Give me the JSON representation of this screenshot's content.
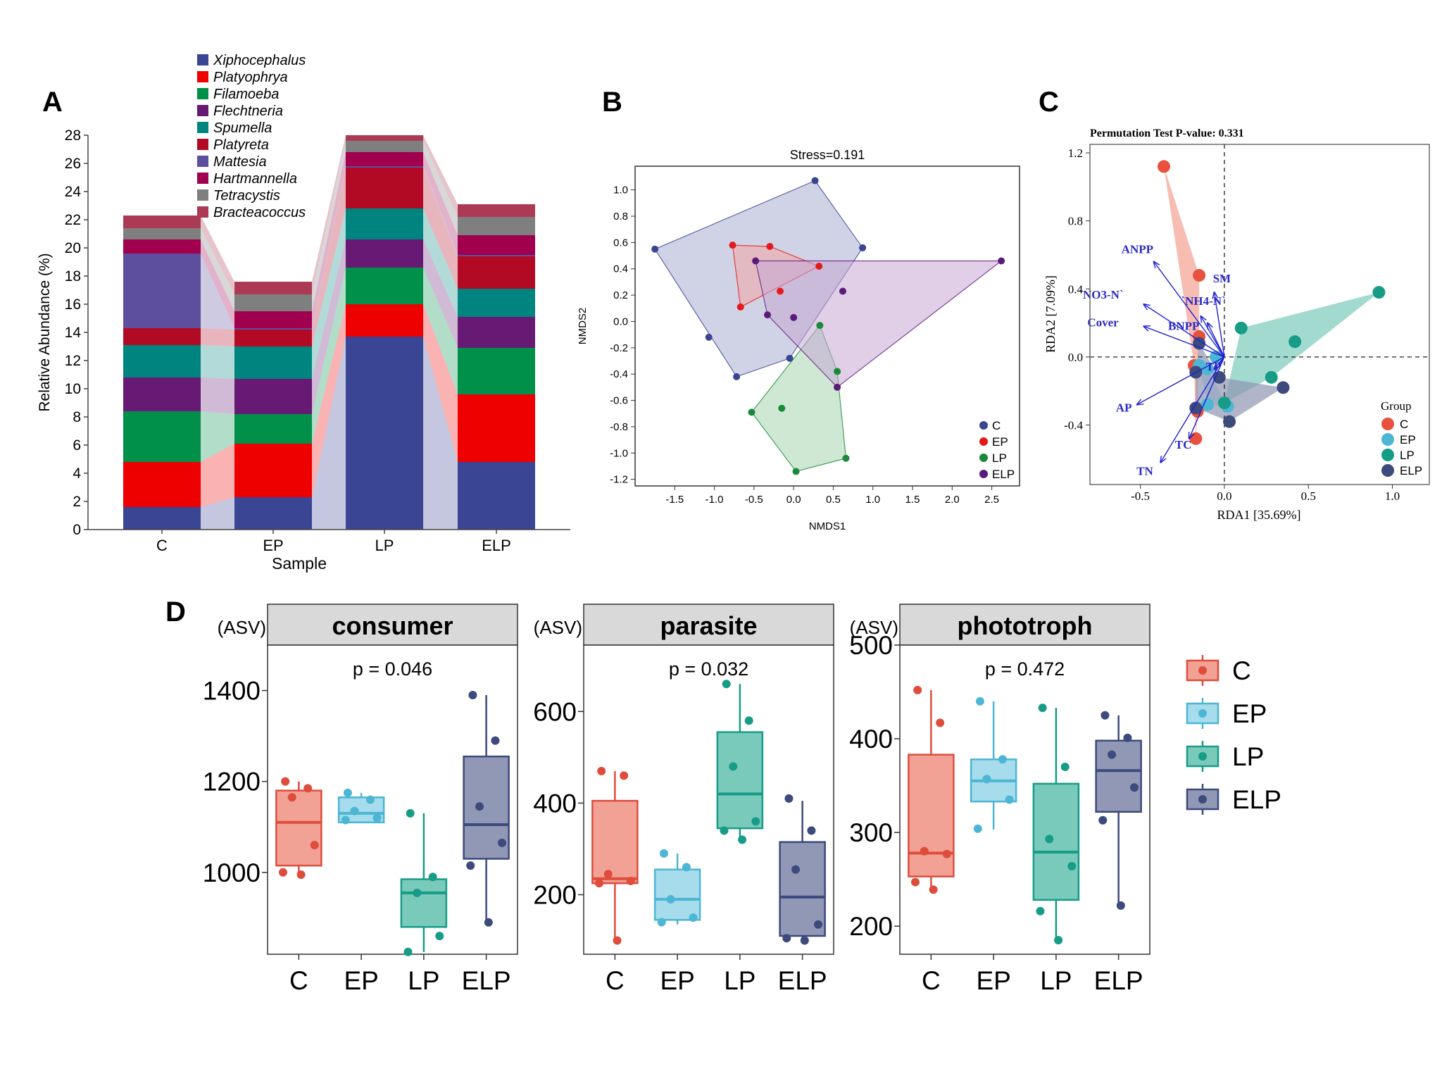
{
  "chart_data": [
    {
      "panel": "A",
      "type": "bar",
      "subtype": "stacked-alluvial",
      "xlabel": "Sample",
      "ylabel": "Relative Abundance (%)",
      "ylim": [
        0,
        28
      ],
      "yticks": [
        0,
        2,
        4,
        6,
        8,
        10,
        12,
        14,
        16,
        18,
        20,
        22,
        24,
        26,
        28
      ],
      "categories": [
        "C",
        "EP",
        "LP",
        "ELP"
      ],
      "series": [
        {
          "name": "Xiphocephalus",
          "color": "#3A4594",
          "values": [
            1.6,
            2.3,
            13.7,
            4.8
          ]
        },
        {
          "name": "Platyophrya",
          "color": "#EE0000",
          "values": [
            3.2,
            3.8,
            2.3,
            4.8
          ]
        },
        {
          "name": "Filamoeba",
          "color": "#00904A",
          "values": [
            3.6,
            2.1,
            2.6,
            3.3
          ]
        },
        {
          "name": "Flechtneria",
          "color": "#671A73",
          "values": [
            2.4,
            2.5,
            2.0,
            2.2
          ]
        },
        {
          "name": "Spumella",
          "color": "#00847F",
          "values": [
            2.3,
            2.3,
            2.2,
            2.0
          ]
        },
        {
          "name": "Platyreta",
          "color": "#B20A24",
          "values": [
            1.2,
            1.2,
            2.9,
            2.3
          ]
        },
        {
          "name": "Mattesia",
          "color": "#5E4E9E",
          "values": [
            5.3,
            0.1,
            0.1,
            0.1
          ]
        },
        {
          "name": "Hartmannella",
          "color": "#A0004E",
          "values": [
            1.0,
            1.2,
            1.0,
            1.4
          ]
        },
        {
          "name": "Tetracystis",
          "color": "#7F7F7F",
          "values": [
            0.8,
            1.2,
            0.8,
            1.3
          ]
        },
        {
          "name": "Bracteacoccus",
          "color": "#AD3A55",
          "values": [
            0.9,
            0.9,
            0.4,
            0.9
          ]
        }
      ]
    },
    {
      "panel": "B",
      "type": "scatter",
      "title": "Stress=0.191",
      "xlabel": "NMDS1",
      "ylabel": "NMDS2",
      "xlim": [
        -2.0,
        2.85
      ],
      "ylim": [
        -1.25,
        1.18
      ],
      "xticks": [
        -1.5,
        -1.0,
        -0.5,
        0.0,
        0.5,
        1.0,
        1.5,
        2.0,
        2.5
      ],
      "yticks": [
        -1.2,
        -1.0,
        -0.8,
        -0.6,
        -0.4,
        -0.2,
        0.0,
        0.2,
        0.4,
        0.6,
        0.8,
        1.0
      ],
      "groups": [
        {
          "name": "C",
          "color": "#3B4491",
          "fill": "#A9AECF",
          "points": [
            [
              -1.75,
              0.55
            ],
            [
              0.27,
              1.07
            ],
            [
              0.87,
              0.56
            ],
            [
              -0.72,
              -0.42
            ],
            [
              -1.07,
              -0.12
            ],
            [
              -0.05,
              -0.28
            ]
          ],
          "hull": [
            [
              -1.75,
              0.55
            ],
            [
              0.27,
              1.07
            ],
            [
              0.87,
              0.56
            ],
            [
              -0.05,
              -0.28
            ],
            [
              -0.72,
              -0.42
            ]
          ]
        },
        {
          "name": "EP",
          "color": "#E31A1C",
          "fill": "#F2A6A6",
          "points": [
            [
              -0.77,
              0.58
            ],
            [
              -0.3,
              0.57
            ],
            [
              0.32,
              0.42
            ],
            [
              -0.67,
              0.11
            ],
            [
              -0.17,
              0.23
            ]
          ],
          "hull": [
            [
              -0.77,
              0.58
            ],
            [
              -0.3,
              0.57
            ],
            [
              0.32,
              0.42
            ],
            [
              -0.67,
              0.11
            ]
          ]
        },
        {
          "name": "LP",
          "color": "#1A8A3A",
          "fill": "#A8D5B0",
          "points": [
            [
              0.33,
              -0.03
            ],
            [
              -0.53,
              -0.69
            ],
            [
              -0.15,
              -0.66
            ],
            [
              0.03,
              -1.14
            ],
            [
              0.66,
              -1.04
            ],
            [
              0.55,
              -0.38
            ]
          ],
          "hull": [
            [
              0.33,
              -0.03
            ],
            [
              0.55,
              -0.38
            ],
            [
              0.66,
              -1.04
            ],
            [
              0.03,
              -1.14
            ],
            [
              -0.53,
              -0.69
            ]
          ]
        },
        {
          "name": "ELP",
          "color": "#5B1A7A",
          "fill": "#C7A8D3",
          "points": [
            [
              -0.48,
              0.46
            ],
            [
              2.62,
              0.46
            ],
            [
              0.55,
              -0.5
            ],
            [
              0.62,
              0.23
            ],
            [
              -0.33,
              0.05
            ],
            [
              0.0,
              0.03
            ]
          ],
          "hull": [
            [
              -0.48,
              0.46
            ],
            [
              2.62,
              0.46
            ],
            [
              0.55,
              -0.5
            ],
            [
              -0.33,
              0.05
            ]
          ]
        }
      ]
    },
    {
      "panel": "C",
      "type": "scatter",
      "subtype": "rda-biplot",
      "title": "Permutation Test P-value: 0.331",
      "xlabel": "RDA1 [35.69%]",
      "ylabel": "RDA2 [7.09%]",
      "xlim": [
        -0.8,
        1.22
      ],
      "ylim": [
        -0.75,
        1.25
      ],
      "xticks": [
        -0.5,
        0.0,
        0.5,
        1.0
      ],
      "yticks": [
        -0.4,
        0.0,
        0.4,
        0.8,
        1.2
      ],
      "legend_title": "Group",
      "groups": [
        {
          "name": "C",
          "color": "#E8513D",
          "fill": "#F4A191",
          "points": [
            [
              -0.36,
              1.12
            ],
            [
              -0.15,
              0.48
            ],
            [
              -0.15,
              0.12
            ],
            [
              -0.18,
              -0.05
            ],
            [
              -0.17,
              -0.48
            ],
            [
              -0.16,
              -0.32
            ]
          ],
          "hull": [
            [
              -0.36,
              1.12
            ],
            [
              -0.15,
              0.48
            ],
            [
              -0.15,
              0.12
            ],
            [
              -0.16,
              -0.32
            ],
            [
              -0.17,
              -0.48
            ],
            [
              -0.18,
              -0.05
            ]
          ]
        },
        {
          "name": "EP",
          "color": "#4CB6D4",
          "fill": "#A6D9E8",
          "points": [
            [
              -0.1,
              -0.07
            ],
            [
              -0.15,
              -0.05
            ],
            [
              0.02,
              -0.29
            ],
            [
              -0.1,
              -0.28
            ],
            [
              -0.05,
              0.0
            ]
          ],
          "hull": [
            [
              -0.15,
              -0.05
            ],
            [
              -0.1,
              -0.07
            ],
            [
              0.02,
              -0.29
            ],
            [
              -0.1,
              -0.28
            ]
          ]
        },
        {
          "name": "LP",
          "color": "#169C87",
          "fill": "#7ACABB",
          "points": [
            [
              0.92,
              0.38
            ],
            [
              0.1,
              0.17
            ],
            [
              0.42,
              0.09
            ],
            [
              0.28,
              -0.12
            ],
            [
              0.0,
              -0.27
            ]
          ],
          "hull": [
            [
              0.92,
              0.38
            ],
            [
              0.28,
              -0.12
            ],
            [
              0.0,
              -0.27
            ],
            [
              0.1,
              0.17
            ]
          ]
        },
        {
          "name": "ELP",
          "color": "#3C4A7C",
          "fill": "#8E96B3",
          "points": [
            [
              0.35,
              -0.18
            ],
            [
              0.03,
              -0.38
            ],
            [
              -0.17,
              -0.09
            ],
            [
              -0.15,
              0.08
            ],
            [
              -0.03,
              -0.12
            ],
            [
              -0.17,
              -0.3
            ]
          ],
          "hull": [
            [
              0.35,
              -0.18
            ],
            [
              0.03,
              -0.38
            ],
            [
              -0.17,
              -0.3
            ],
            [
              -0.17,
              -0.09
            ],
            [
              -0.15,
              0.08
            ],
            [
              -0.03,
              -0.12
            ]
          ]
        }
      ],
      "vectors": [
        {
          "label": "ANPP",
          "end": [
            -0.42,
            0.56
          ]
        },
        {
          "label": "SM",
          "end": [
            -0.06,
            0.38
          ]
        },
        {
          "label": "`NO3-N`",
          "end": [
            -0.48,
            0.31
          ]
        },
        {
          "label": "`NH4-N`",
          "end": [
            -0.14,
            0.24
          ]
        },
        {
          "label": "Cover",
          "end": [
            -0.48,
            0.18
          ]
        },
        {
          "label": "BNPP",
          "end": [
            -0.1,
            0.2
          ]
        },
        {
          "label": "TP",
          "end": [
            -0.06,
            -0.07
          ]
        },
        {
          "label": "AP",
          "end": [
            -0.52,
            -0.28
          ]
        },
        {
          "label": "TC",
          "end": [
            -0.21,
            -0.48
          ]
        },
        {
          "label": "TN",
          "end": [
            -0.38,
            -0.62
          ]
        }
      ]
    },
    {
      "panel": "D",
      "type": "boxplot",
      "ylabel": "(ASV)",
      "categories": [
        "C",
        "EP",
        "LP",
        "ELP"
      ],
      "colors": [
        "#DE4C3C",
        "#4CB6D4",
        "#169C87",
        "#3C4A7C"
      ],
      "fills": [
        "#F2A295",
        "#A6DCEB",
        "#7ACABB",
        "#9198B6"
      ],
      "facets": [
        {
          "name": "consumer",
          "p_label": "p = 0.046",
          "ylim": [
            820,
            1500
          ],
          "yticks": [
            1000,
            1200,
            1400
          ],
          "boxes": [
            {
              "q1": 1015,
              "median": 1110,
              "q3": 1180,
              "whisker_low": 995,
              "whisker_high": 1200,
              "points": [
                1200,
                1185,
                1165,
                1060,
                1000,
                995
              ]
            },
            {
              "q1": 1110,
              "median": 1130,
              "q3": 1165,
              "whisker_low": 1110,
              "whisker_high": 1175,
              "points": [
                1175,
                1160,
                1135,
                1120,
                1115
              ]
            },
            {
              "q1": 880,
              "median": 955,
              "q3": 985,
              "whisker_low": 825,
              "whisker_high": 1130,
              "points": [
                1130,
                990,
                955,
                860,
                825
              ]
            },
            {
              "q1": 1030,
              "median": 1105,
              "q3": 1255,
              "whisker_low": 890,
              "whisker_high": 1390,
              "points": [
                1390,
                1290,
                1145,
                1065,
                1015,
                890
              ]
            }
          ]
        },
        {
          "name": "parasite",
          "p_label": "p = 0.032",
          "ylim": [
            70,
            745
          ],
          "yticks": [
            200,
            400,
            600
          ],
          "boxes": [
            {
              "q1": 225,
              "median": 235,
              "q3": 405,
              "whisker_low": 100,
              "whisker_high": 470,
              "points": [
                470,
                460,
                245,
                230,
                225,
                100
              ]
            },
            {
              "q1": 145,
              "median": 190,
              "q3": 255,
              "whisker_low": 135,
              "whisker_high": 290,
              "points": [
                290,
                260,
                190,
                150,
                140
              ]
            },
            {
              "q1": 345,
              "median": 420,
              "q3": 555,
              "whisker_low": 320,
              "whisker_high": 660,
              "points": [
                660,
                580,
                480,
                360,
                340,
                320
              ]
            },
            {
              "q1": 110,
              "median": 195,
              "q3": 315,
              "whisker_low": 95,
              "whisker_high": 405,
              "points": [
                410,
                340,
                255,
                135,
                105,
                100
              ]
            }
          ]
        },
        {
          "name": "phototroph",
          "p_label": "p = 0.472",
          "ylim": [
            170,
            500
          ],
          "yticks": [
            200,
            300,
            400,
            500
          ],
          "boxes": [
            {
              "q1": 253,
              "median": 278,
              "q3": 383,
              "whisker_low": 237,
              "whisker_high": 452,
              "points": [
                452,
                417,
                280,
                277,
                247,
                239
              ]
            },
            {
              "q1": 333,
              "median": 355,
              "q3": 378,
              "whisker_low": 303,
              "whisker_high": 440,
              "points": [
                440,
                378,
                357,
                335,
                304
              ]
            },
            {
              "q1": 228,
              "median": 279,
              "q3": 352,
              "whisker_low": 185,
              "whisker_high": 433,
              "points": [
                433,
                370,
                293,
                264,
                216,
                185
              ]
            },
            {
              "q1": 322,
              "median": 366,
              "q3": 398,
              "whisker_low": 222,
              "whisker_high": 425,
              "points": [
                425,
                401,
                383,
                348,
                313,
                222
              ]
            }
          ]
        }
      ]
    }
  ],
  "panel_labels": {
    "a": "A",
    "b": "B",
    "c": "C",
    "d": "D"
  }
}
